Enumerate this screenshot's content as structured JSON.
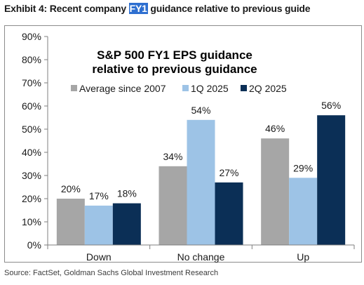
{
  "header": {
    "exhibit_prefix": "Exhibit 4: Recent company ",
    "exhibit_highlight": "FY1",
    "exhibit_suffix": " guidance relative to previous guide"
  },
  "chart_data": {
    "type": "bar",
    "title": "S&P 500 FY1 EPS guidance relative to previous guidance",
    "title_lines": [
      "S&P 500 FY1 EPS guidance",
      "relative to previous guidance"
    ],
    "categories": [
      "Down",
      "No change",
      "Up"
    ],
    "series": [
      {
        "name": "Average since 2007",
        "values": [
          20,
          34,
          46
        ],
        "labels": [
          "20%",
          "34%",
          "46%"
        ],
        "color": "#a6a6a6"
      },
      {
        "name": "1Q 2025",
        "values": [
          17,
          54,
          29
        ],
        "labels": [
          "17%",
          "54%",
          "29%"
        ],
        "color": "#9dc3e6"
      },
      {
        "name": "2Q 2025",
        "values": [
          18,
          27,
          56
        ],
        "labels": [
          "18%",
          "27%",
          "56%"
        ],
        "color": "#0b2f56"
      }
    ],
    "ylim": [
      0,
      90
    ],
    "ytick_labels": [
      "0%",
      "10%",
      "20%",
      "30%",
      "40%",
      "50%",
      "60%",
      "70%",
      "80%",
      "90%"
    ],
    "xlabel": "",
    "ylabel": "",
    "grid": false,
    "legend_position": "top"
  },
  "footer": {
    "source": "Source: FactSet, Goldman Sachs Global Investment Research"
  }
}
